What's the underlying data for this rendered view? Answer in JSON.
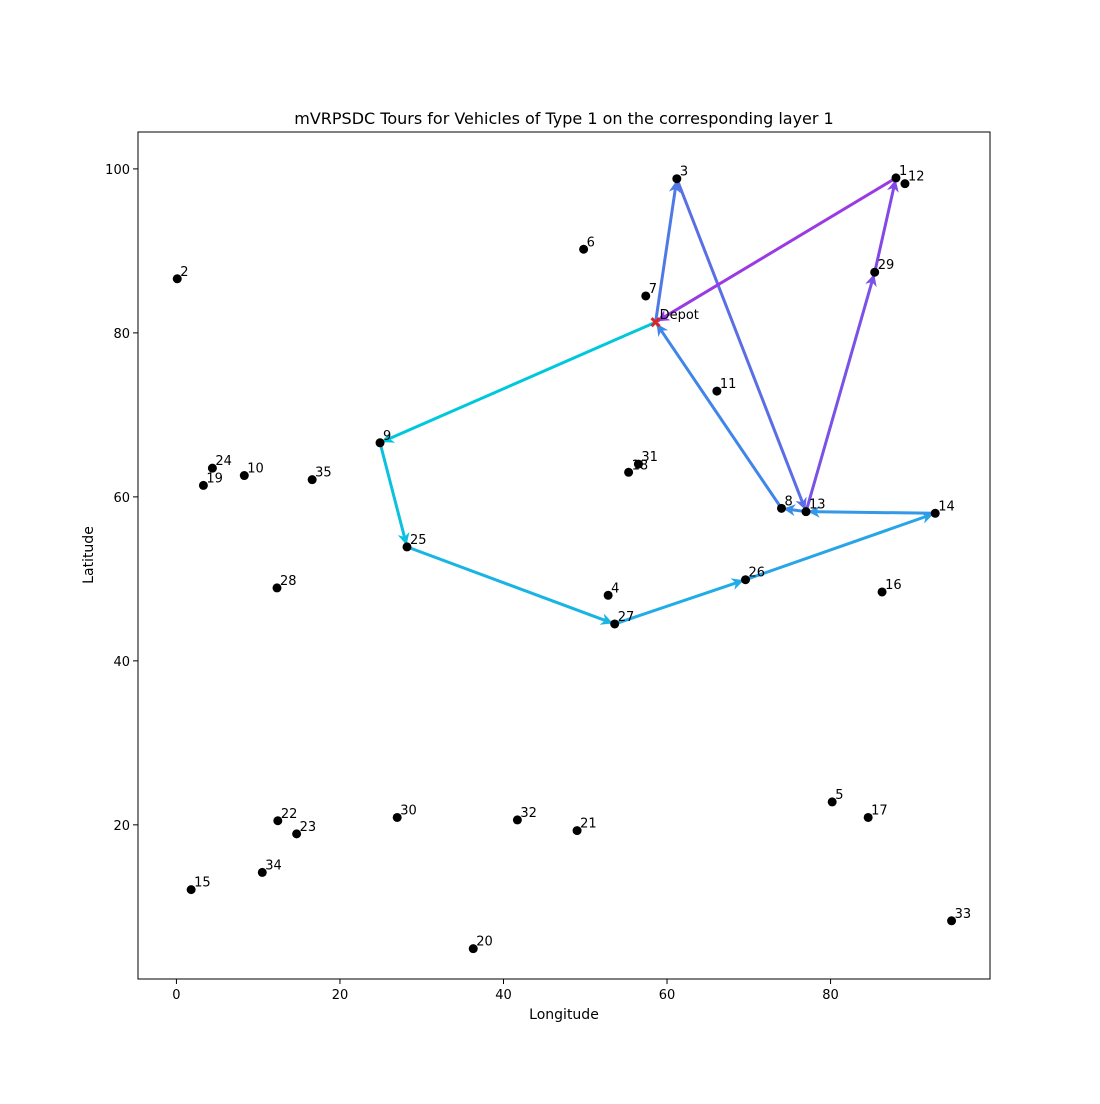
{
  "chart_data": {
    "type": "scatter",
    "title": "mVRPSDC Tours for Vehicles of Type 1 on the corresponding layer 1",
    "xlabel": "Longitude",
    "ylabel": "Latitude",
    "xlim": [
      -4.7,
      99.5
    ],
    "ylim": [
      1.2,
      104.5
    ],
    "xticks": [
      0,
      20,
      40,
      60,
      80
    ],
    "yticks": [
      20,
      40,
      60,
      80,
      100
    ],
    "grid": false,
    "legend": "none",
    "depot": {
      "label": "Depot",
      "x": 58.6,
      "y": 81.3,
      "color": "#d62728"
    },
    "point_color": "#000000",
    "points": [
      {
        "label": "1",
        "x": 88.0,
        "y": 98.9
      },
      {
        "label": "2",
        "x": 0.1,
        "y": 86.6
      },
      {
        "label": "3",
        "x": 61.2,
        "y": 98.8
      },
      {
        "label": "4",
        "x": 52.8,
        "y": 48.0
      },
      {
        "label": "5",
        "x": 80.2,
        "y": 22.8
      },
      {
        "label": "6",
        "x": 49.8,
        "y": 90.2
      },
      {
        "label": "7",
        "x": 57.4,
        "y": 84.5
      },
      {
        "label": "8",
        "x": 74.0,
        "y": 58.6
      },
      {
        "label": "9",
        "x": 24.9,
        "y": 66.6
      },
      {
        "label": "10",
        "x": 8.3,
        "y": 62.6
      },
      {
        "label": "11",
        "x": 66.1,
        "y": 72.9
      },
      {
        "label": "12",
        "x": 89.1,
        "y": 98.2
      },
      {
        "label": "13",
        "x": 77.0,
        "y": 58.2
      },
      {
        "label": "14",
        "x": 92.8,
        "y": 58.0
      },
      {
        "label": "15",
        "x": 1.8,
        "y": 12.1
      },
      {
        "label": "16",
        "x": 86.3,
        "y": 48.4
      },
      {
        "label": "17",
        "x": 84.6,
        "y": 20.9
      },
      {
        "label": "18",
        "x": 55.3,
        "y": 63.0
      },
      {
        "label": "19",
        "x": 3.3,
        "y": 61.4
      },
      {
        "label": "20",
        "x": 36.3,
        "y": 4.9
      },
      {
        "label": "21",
        "x": 49.0,
        "y": 19.3
      },
      {
        "label": "22",
        "x": 12.4,
        "y": 20.5
      },
      {
        "label": "23",
        "x": 14.7,
        "y": 18.9
      },
      {
        "label": "24",
        "x": 4.4,
        "y": 63.5
      },
      {
        "label": "25",
        "x": 28.2,
        "y": 53.9
      },
      {
        "label": "26",
        "x": 69.6,
        "y": 49.9
      },
      {
        "label": "27",
        "x": 53.6,
        "y": 44.5
      },
      {
        "label": "28",
        "x": 12.3,
        "y": 48.9
      },
      {
        "label": "29",
        "x": 85.4,
        "y": 87.4
      },
      {
        "label": "30",
        "x": 27.0,
        "y": 20.9
      },
      {
        "label": "31",
        "x": 56.5,
        "y": 64.0
      },
      {
        "label": "32",
        "x": 41.7,
        "y": 20.6
      },
      {
        "label": "33",
        "x": 94.8,
        "y": 8.3
      },
      {
        "label": "34",
        "x": 10.5,
        "y": 14.2
      },
      {
        "label": "35",
        "x": 16.6,
        "y": 62.1
      }
    ],
    "series": [
      {
        "color": "#00cfd8",
        "route": [
          "Depot",
          "9",
          "25",
          "27",
          "26",
          "14",
          "13",
          "8",
          "Depot"
        ],
        "segment_colors": [
          "#00c8dc",
          "#0cc0e0",
          "#18b4e4",
          "#20ace6",
          "#28a4e8",
          "#3398e8",
          "#3a8ee8",
          "#3f86e8"
        ]
      },
      {
        "color": "#5a6ee6",
        "route": [
          "Depot",
          "3",
          "13",
          "29",
          "1",
          "Depot"
        ],
        "segment_colors": [
          "#4f7ae6",
          "#5a6ee6",
          "#7a52e6",
          "#8448e6",
          "#9a3ae4"
        ]
      }
    ]
  }
}
